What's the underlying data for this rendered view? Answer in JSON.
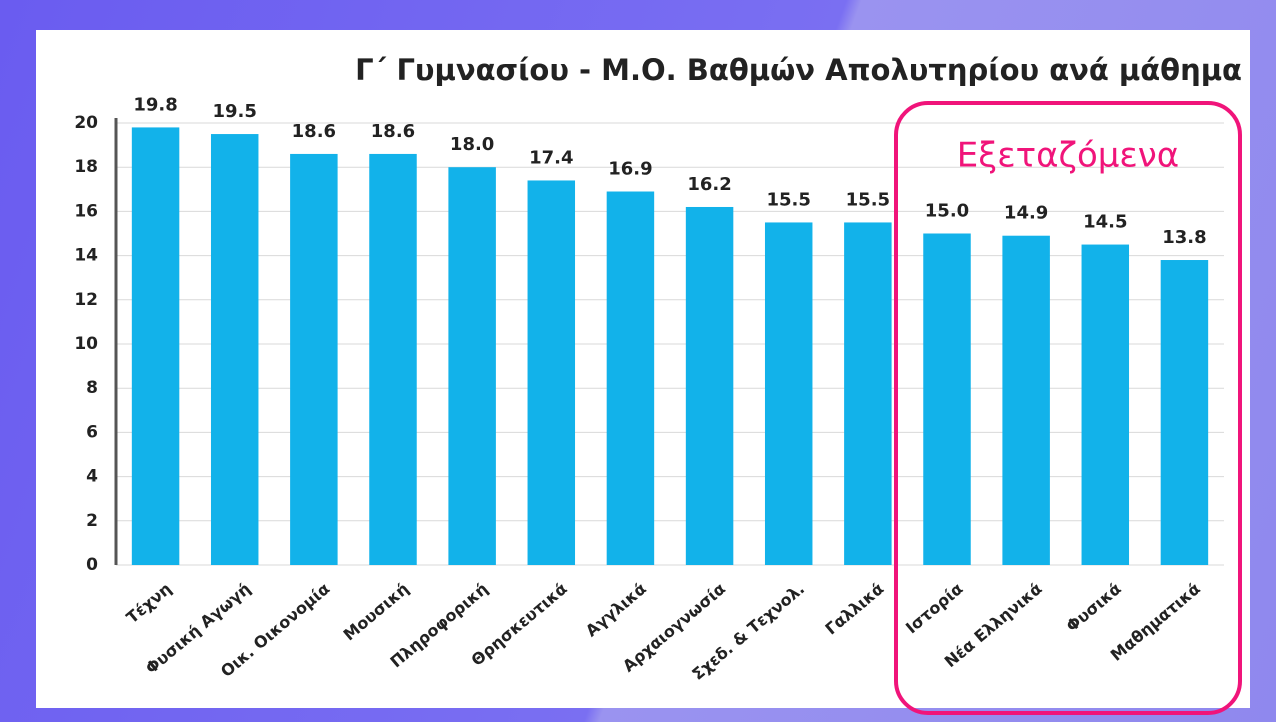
{
  "chart_data": {
    "type": "bar",
    "title": "Γ΄ Γυμνασίου - Μ.Ο. Βαθμών Απολυτηρίου ανά μάθημα",
    "annotation": "Εξεταζόμενα",
    "categories": [
      "Τέχνη",
      "Φυσική Αγωγή",
      "Οικ. Οικονομία",
      "Μουσική",
      "Πληροφορική",
      "Θρησκευτικά",
      "Αγγλικά",
      "Αρχαιογνωσία",
      "Σχεδ. & Τεχνολ.",
      "Γαλλικά",
      "Ιστορία",
      "Νέα Ελληνικά",
      "Φυσικά",
      "Μαθηματικά"
    ],
    "values": [
      19.8,
      19.5,
      18.6,
      18.6,
      18.0,
      17.4,
      16.9,
      16.2,
      15.5,
      15.5,
      15.0,
      14.9,
      14.5,
      13.8
    ],
    "value_labels": [
      "19.8",
      "19.5",
      "18.6",
      "18.6",
      "18.0",
      "17.4",
      "16.9",
      "16.2",
      "15.5",
      "15.5",
      "15.0",
      "14.9",
      "14.5",
      "13.8"
    ],
    "color": "#12b2ea",
    "ylim": [
      0,
      20
    ],
    "yticks": [
      0,
      2,
      4,
      6,
      8,
      10,
      12,
      14,
      16,
      18,
      20
    ],
    "grid": true
  }
}
